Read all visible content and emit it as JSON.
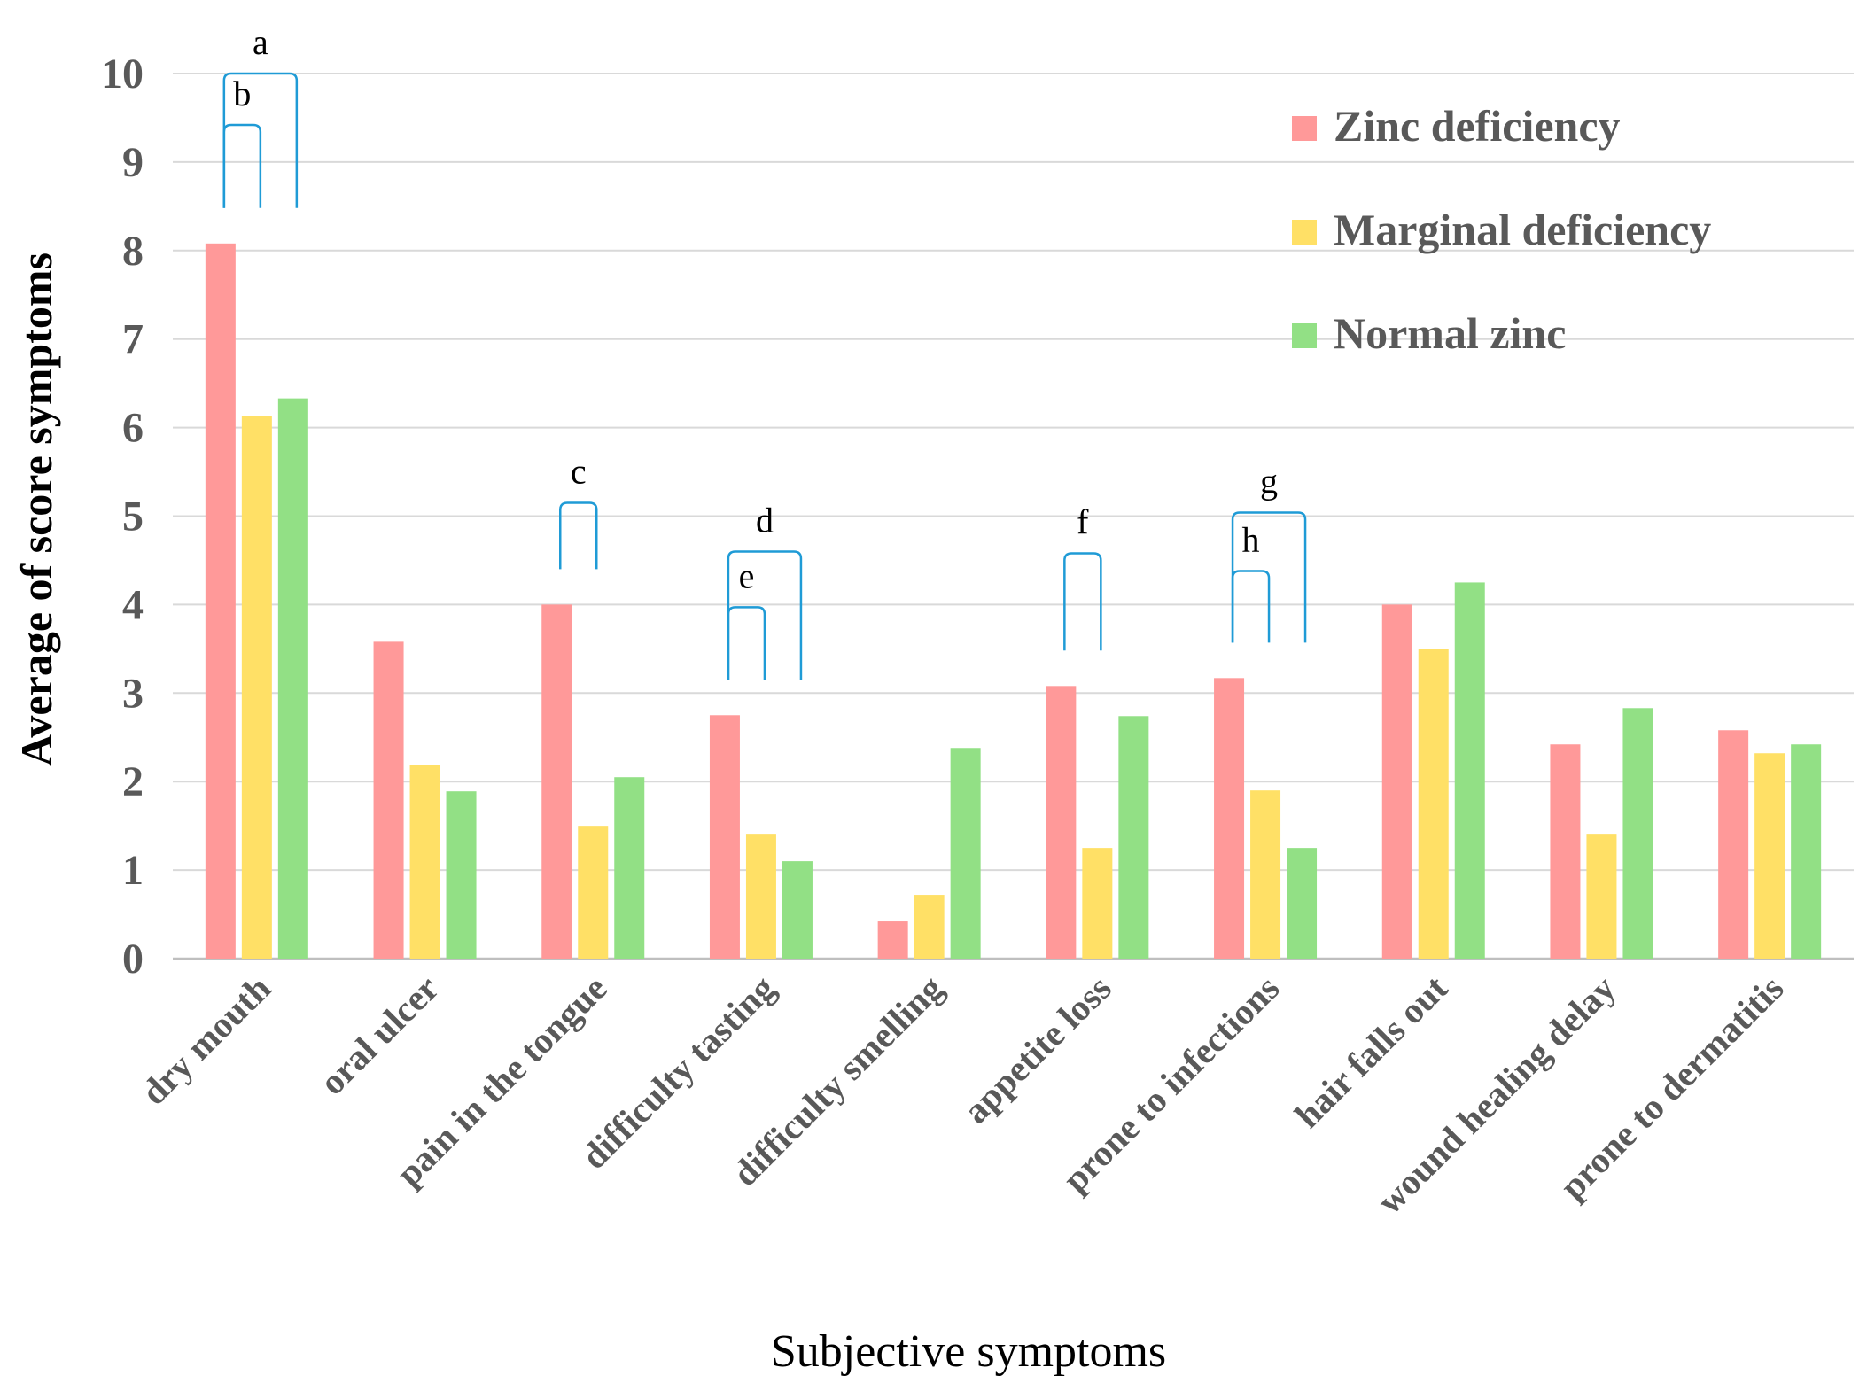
{
  "chart_data": {
    "type": "bar",
    "title": "",
    "xlabel": "Subjective symptoms",
    "ylabel": "Average of score symptoms",
    "ylim": [
      0,
      10
    ],
    "yticks": [
      0,
      1,
      2,
      3,
      4,
      5,
      6,
      7,
      8,
      9,
      10
    ],
    "grid": true,
    "legend_position": "top-right",
    "categories": [
      "dry mouth",
      "oral ulcer",
      "pain in the tongue",
      "difficulty tasting",
      "difficulty smelling",
      "appetite loss",
      "prone to infections",
      "hair falls out",
      "wound healing delay",
      "prone to dermatitis"
    ],
    "series": [
      {
        "name": "Zinc deficiency",
        "color": "#ff9999",
        "values": [
          8.08,
          3.58,
          4.0,
          2.75,
          0.42,
          3.08,
          3.17,
          4.0,
          2.42,
          2.58
        ]
      },
      {
        "name": "Marginal deficiency",
        "color": "#ffe066",
        "values": [
          6.13,
          2.19,
          1.5,
          1.41,
          0.72,
          1.25,
          1.9,
          3.5,
          1.41,
          2.32
        ]
      },
      {
        "name": "Normal zinc",
        "color": "#92e085",
        "values": [
          6.33,
          1.89,
          2.05,
          1.1,
          2.38,
          2.74,
          1.25,
          4.25,
          2.83,
          2.42
        ]
      }
    ],
    "significance_color": "#1f9bd6",
    "significance": [
      {
        "label": "a",
        "category": 0,
        "from_series": 0,
        "to_series": 2,
        "level": 10.0
      },
      {
        "label": "b",
        "category": 0,
        "from_series": 0,
        "to_series": 1,
        "level": 9.42
      },
      {
        "label": "c",
        "category": 2,
        "from_series": 0,
        "to_series": 1,
        "level": 5.15
      },
      {
        "label": "d",
        "category": 3,
        "from_series": 0,
        "to_series": 2,
        "level": 4.6
      },
      {
        "label": "e",
        "category": 3,
        "from_series": 0,
        "to_series": 1,
        "level": 3.97
      },
      {
        "label": "f",
        "category": 5,
        "from_series": 0,
        "to_series": 1,
        "level": 4.58
      },
      {
        "label": "g",
        "category": 6,
        "from_series": 0,
        "to_series": 2,
        "level": 5.04
      },
      {
        "label": "h",
        "category": 6,
        "from_series": 0,
        "to_series": 1,
        "level": 4.38
      }
    ]
  }
}
